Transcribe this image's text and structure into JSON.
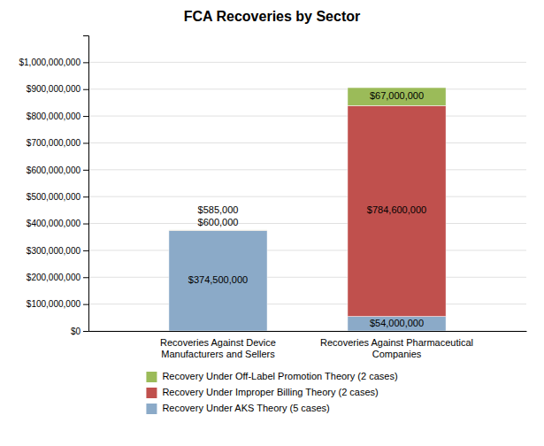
{
  "chart_data": {
    "type": "bar",
    "stacked": true,
    "title": "FCA Recoveries by Sector",
    "categories": [
      "Recoveries Against Device\nManufacturers and Sellers",
      "Recoveries Against Pharmaceutical\nCompanies"
    ],
    "series": [
      {
        "name": "Recovery Under AKS Theory (5 cases)",
        "color": "#8BAAC8",
        "values": [
          374500000,
          54000000
        ],
        "value_labels": [
          "$374,500,000",
          "$54,000,000"
        ]
      },
      {
        "name": "Recovery Under Improper Billing Theory (2 cases)",
        "color": "#C0504D",
        "values": [
          600000,
          784600000
        ],
        "value_labels": [
          "$600,000",
          "$784,600,000"
        ]
      },
      {
        "name": "Recovery Under Off-Label Promotion Theory (2 cases)",
        "color": "#9BBB59",
        "values": [
          585000,
          67000000
        ],
        "value_labels": [
          "$585,000",
          "$67,000,000"
        ]
      }
    ],
    "ylim": [
      0,
      1100000000
    ],
    "yticks": [
      {
        "value": 0,
        "label": "$0"
      },
      {
        "value": 100000000,
        "label": "$100,000,000"
      },
      {
        "value": 200000000,
        "label": "$200,000,000"
      },
      {
        "value": 300000000,
        "label": "$300,000,000"
      },
      {
        "value": 400000000,
        "label": "$400,000,000"
      },
      {
        "value": 500000000,
        "label": "$500,000,000"
      },
      {
        "value": 600000000,
        "label": "$600,000,000"
      },
      {
        "value": 700000000,
        "label": "$700,000,000"
      },
      {
        "value": 800000000,
        "label": "$800,000,000"
      },
      {
        "value": 900000000,
        "label": "$900,000,000"
      },
      {
        "value": 1000000000,
        "label": "$1,000,000,000"
      }
    ],
    "grid": true,
    "data_labels": true,
    "legend": "bottom"
  }
}
